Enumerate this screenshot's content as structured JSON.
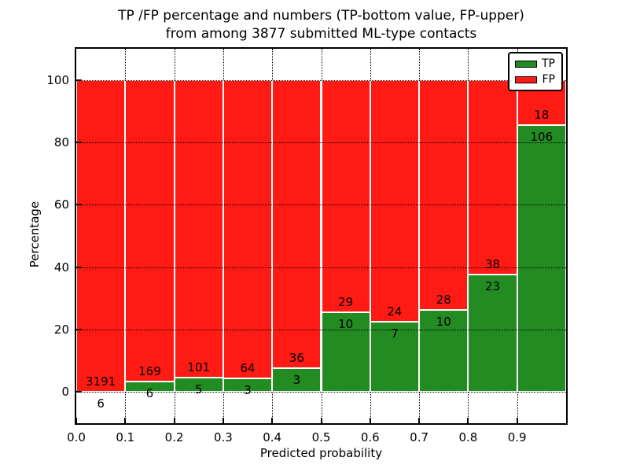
{
  "title": {
    "line1": "TP /FP percentage and numbers (TP-bottom value, FP-upper)",
    "line2": "from among 3877 submitted ML-type contacts"
  },
  "axes": {
    "xlabel": "Predicted probability",
    "ylabel": "Percentage",
    "y_ticks": [
      0,
      20,
      40,
      60,
      80,
      100
    ],
    "x_ticks": [
      "0.0",
      "0.1",
      "0.2",
      "0.3",
      "0.4",
      "0.5",
      "0.6",
      "0.7",
      "0.8",
      "0.9"
    ],
    "ylim": [
      -10,
      110
    ],
    "xlim": [
      0.0,
      1.0
    ],
    "grid": true
  },
  "legend": {
    "position": "upper right",
    "items": [
      {
        "label": "TP",
        "color": "#228b22"
      },
      {
        "label": "FP",
        "color": "#ff1a14"
      }
    ]
  },
  "chart_data": {
    "type": "bar",
    "stacked": true,
    "normalized_to_percent": 100,
    "title": "TP /FP percentage and numbers (TP-bottom value, FP-upper) from among 3877 submitted ML-type contacts",
    "xlabel": "Predicted probability",
    "ylabel": "Percentage",
    "xlim": [
      0.0,
      1.0
    ],
    "ylim": [
      -10,
      110
    ],
    "grid": true,
    "legend_position": "upper right",
    "total_contacts": 3877,
    "bin_edges": [
      0.0,
      0.1,
      0.2,
      0.3,
      0.4,
      0.5,
      0.6,
      0.7,
      0.8,
      0.9,
      1.0
    ],
    "series": [
      {
        "name": "TP",
        "color": "#228b22",
        "counts": [
          6,
          6,
          5,
          3,
          3,
          10,
          7,
          10,
          23,
          106
        ]
      },
      {
        "name": "FP",
        "color": "#ff1a14",
        "counts": [
          3191,
          169,
          101,
          64,
          36,
          29,
          24,
          28,
          38,
          18
        ]
      }
    ],
    "tp_percent_approx": [
      0.19,
      3.43,
      4.72,
      4.48,
      7.69,
      25.64,
      22.58,
      26.32,
      37.7,
      85.48
    ]
  }
}
